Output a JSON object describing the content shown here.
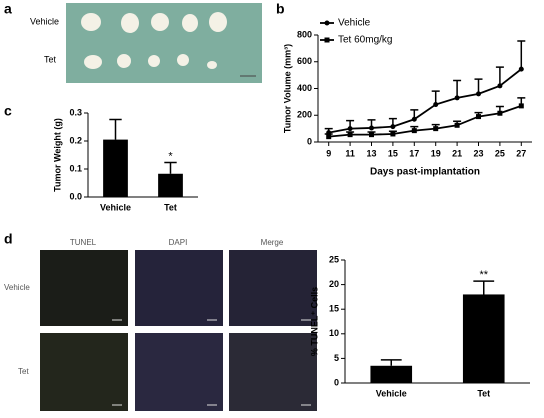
{
  "figure": {
    "panel_labels": [
      "a",
      "b",
      "c",
      "d"
    ],
    "photo_a": {
      "rows": [
        "Vehicle",
        "Tet"
      ]
    },
    "photo_d": {
      "columns": [
        "TUNEL",
        "DAPI",
        "Merge"
      ],
      "rows": [
        "Vehicle",
        "Tet"
      ]
    }
  },
  "chart_data": [
    {
      "type": "line",
      "x": [
        9,
        11,
        13,
        15,
        17,
        19,
        21,
        23,
        25,
        27
      ],
      "xlim": [
        8,
        28
      ],
      "xticks": [
        9,
        11,
        13,
        15,
        17,
        19,
        21,
        23,
        25,
        27
      ],
      "ylim": [
        0,
        800
      ],
      "yticks": [
        0,
        200,
        400,
        600,
        800
      ],
      "xlabel": "Days past-implantation",
      "ylabel": "Tumor Volume (mm³)",
      "legend": "top-left",
      "series": [
        {
          "name": "Vehicle",
          "color": "#000000",
          "marker": "circle",
          "values": [
            70,
            100,
            105,
            115,
            170,
            280,
            330,
            360,
            420,
            545
          ],
          "errors": [
            30,
            60,
            60,
            60,
            70,
            100,
            130,
            110,
            140,
            210
          ]
        },
        {
          "name": "Tet 60mg/kg",
          "color": "#000000",
          "marker": "square",
          "values": [
            40,
            55,
            55,
            60,
            85,
            100,
            125,
            190,
            215,
            270
          ],
          "errors": [
            20,
            20,
            20,
            20,
            30,
            30,
            30,
            30,
            50,
            60
          ]
        }
      ]
    },
    {
      "type": "bar",
      "categories": [
        "Vehicle",
        "Tet"
      ],
      "values": [
        0.205,
        0.083
      ],
      "errors": [
        0.072,
        0.04
      ],
      "value_annotations": [
        null,
        "*"
      ],
      "color": "#000000",
      "ylim": [
        0,
        0.3
      ],
      "yticks": [
        {
          "value": 0,
          "label": "0.0"
        },
        0.1,
        0.2,
        0.3
      ],
      "ylabel": "Tumor Weight (g)"
    },
    {
      "type": "bar",
      "categories": [
        "Vehicle",
        "Tet"
      ],
      "values": [
        3.5,
        18
      ],
      "errors": [
        1.2,
        2.7
      ],
      "value_annotations": [
        null,
        "**"
      ],
      "color": "#000000",
      "ylim": [
        0,
        25
      ],
      "yticks": [
        0,
        5,
        10,
        15,
        20,
        25
      ],
      "ylabel": "% TUNEL⁺ Cells"
    }
  ]
}
